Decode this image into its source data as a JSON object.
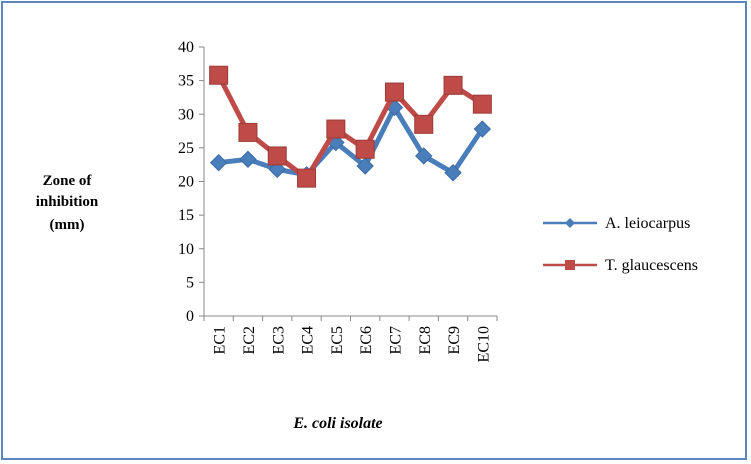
{
  "chart_data": {
    "type": "line",
    "categories": [
      "EC1",
      "EC2",
      "EC3",
      "EC4",
      "EC5",
      "EC6",
      "EC7",
      "EC8",
      "EC9",
      "EC10"
    ],
    "series": [
      {
        "name": "A. leiocarpus",
        "color": "#4a7ebb",
        "marker": "diamond",
        "values": [
          22.8,
          23.3,
          21.8,
          21.0,
          25.8,
          22.3,
          31.0,
          23.8,
          21.3,
          27.8
        ]
      },
      {
        "name": "T. glaucescens",
        "color": "#be4b48",
        "marker": "square",
        "values": [
          35.8,
          27.3,
          23.8,
          20.5,
          27.8,
          24.8,
          33.3,
          28.5,
          34.3,
          31.5
        ]
      }
    ],
    "ylabel_lines": [
      "Zone of",
      "inhibition",
      "(mm)"
    ],
    "xlabel": "E. coli isolate",
    "ylim": [
      0,
      40
    ],
    "yticks": [
      "0",
      "5",
      "10",
      "15",
      "20",
      "25",
      "30",
      "35",
      "40"
    ],
    "grid": false,
    "legend_position": "right"
  }
}
